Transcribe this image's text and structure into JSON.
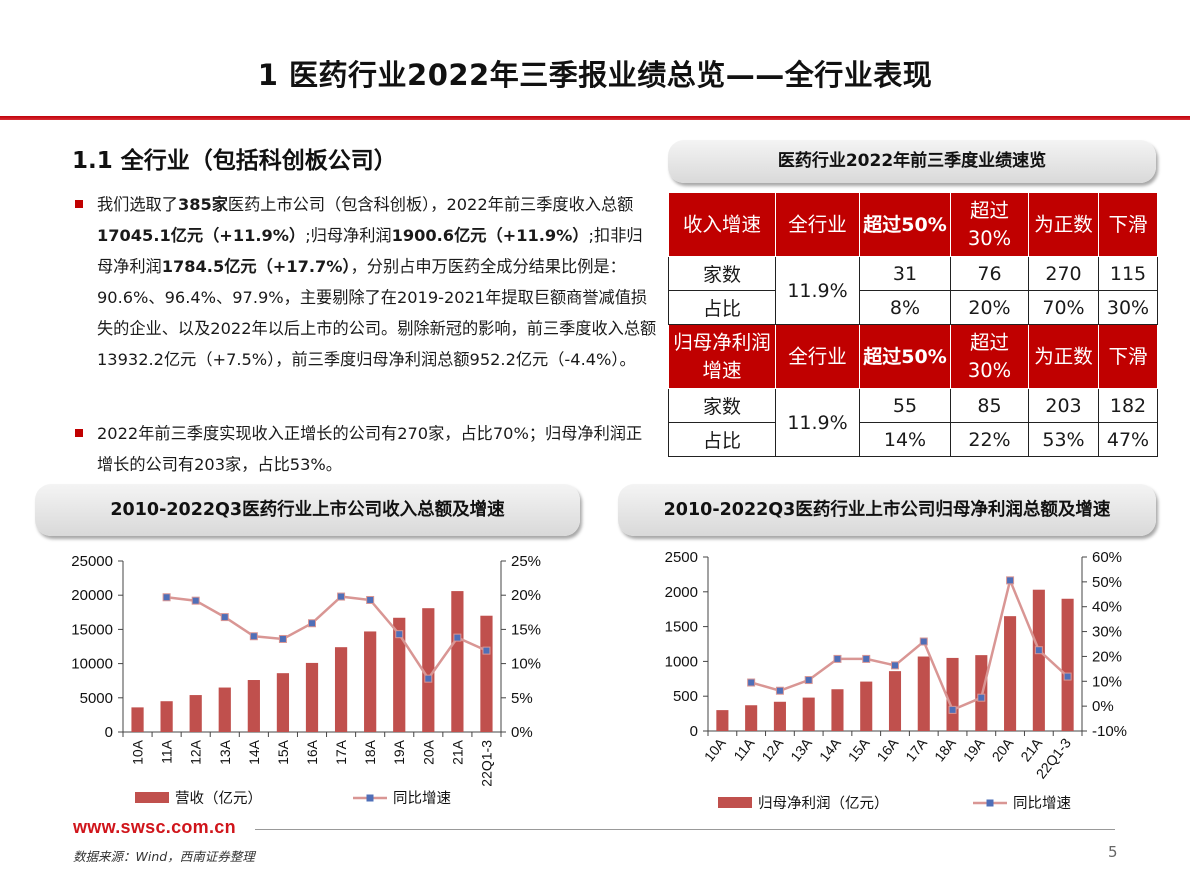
{
  "page": {
    "title": "1 医药行业2022年三季报业绩总览——全行业表现",
    "section_heading": "1.1 全行业（包括科创板公司）",
    "bullet1": [
      {
        "t": "我们选取了",
        "b": false
      },
      {
        "t": "385家",
        "b": true
      },
      {
        "t": "医药上市公司（包含科创板），2022年前三季度收入总额",
        "b": false
      },
      {
        "t": "17045.1亿元（+11.9%）",
        "b": true
      },
      {
        "t": ";归母净利润",
        "b": false
      },
      {
        "t": "1900.6亿元（+11.9%）",
        "b": true
      },
      {
        "t": ";扣非归母净利润",
        "b": false
      },
      {
        "t": "1784.5亿元（+17.7%）",
        "b": true
      },
      {
        "t": "，分别占申万医药全成分结果比例是：90.6%、96.4%、97.9%，主要剔除了在2019-2021年提取巨额商誉减值损失的企业、以及2022年以后上市的公司。剔除新冠的影响，前三季度收入总额13932.2亿元（+7.5%），前三季度归母净利润总额952.2亿元（-4.4%）。",
        "b": false
      }
    ],
    "bullet2": "2022年前三季度实现收入正增长的公司有270家，占比70%；归母净利润正增长的公司有203家，占比53%。",
    "footer_url": "www.swsc.com.cn",
    "footer_source": "数据来源：Wind，西南证券整理",
    "page_number": "5"
  },
  "table": {
    "title": "医药行业2022年前三季度业绩速览",
    "blocks": [
      {
        "header": [
          "收入增速",
          "全行业",
          "超过50%",
          "超过30%",
          "为正数",
          "下滑"
        ],
        "overall": "11.9%",
        "rows": [
          {
            "label": "家数",
            "values": [
              "31",
              "76",
              "270",
              "115"
            ]
          },
          {
            "label": "占比",
            "values": [
              "8%",
              "20%",
              "70%",
              "30%"
            ]
          }
        ]
      },
      {
        "header": [
          "归母净利润增速",
          "全行业",
          "超过50%",
          "超过30%",
          "为正数",
          "下滑"
        ],
        "overall": "11.9%",
        "rows": [
          {
            "label": "家数",
            "values": [
              "55",
              "85",
              "203",
              "182"
            ]
          },
          {
            "label": "占比",
            "values": [
              "14%",
              "22%",
              "53%",
              "47%"
            ]
          }
        ]
      }
    ]
  },
  "chart_data": [
    {
      "type": "bar+line",
      "title": "2010-2022Q3医药行业上市公司收入总额及增速",
      "categories": [
        "10A",
        "11A",
        "12A",
        "13A",
        "14A",
        "15A",
        "16A",
        "17A",
        "18A",
        "19A",
        "20A",
        "21A",
        "22Q1-3"
      ],
      "series": [
        {
          "name": "营收（亿元）",
          "type": "bar",
          "axis": "left",
          "color": "#c0504d",
          "values": [
            3600,
            4500,
            5400,
            6500,
            7600,
            8600,
            10100,
            12400,
            14700,
            16700,
            18100,
            20600,
            17000
          ]
        },
        {
          "name": "同比增速",
          "type": "line",
          "axis": "right",
          "color": "#d99694",
          "marker_color": "#4f6fb8",
          "values": [
            null,
            19.7,
            19.2,
            16.8,
            14.0,
            13.6,
            15.9,
            19.8,
            19.3,
            14.3,
            7.8,
            13.8,
            11.9
          ]
        }
      ],
      "y_left": {
        "min": 0,
        "max": 25000,
        "ticks": [
          0,
          5000,
          10000,
          15000,
          20000,
          25000
        ]
      },
      "y_right": {
        "min": 0,
        "max": 25,
        "ticks": [
          "0%",
          "5%",
          "10%",
          "15%",
          "20%",
          "25%"
        ]
      },
      "legend": "bottom"
    },
    {
      "type": "bar+line",
      "title": "2010-2022Q3医药行业上市公司归母净利润总额及增速",
      "categories": [
        "10A",
        "11A",
        "12A",
        "13A",
        "14A",
        "15A",
        "16A",
        "17A",
        "18A",
        "19A",
        "20A",
        "21A",
        "22Q1-3"
      ],
      "series": [
        {
          "name": "归母净利润（亿元）",
          "type": "bar",
          "axis": "left",
          "color": "#c0504d",
          "values": [
            300,
            370,
            420,
            480,
            600,
            710,
            860,
            1070,
            1050,
            1090,
            1650,
            2030,
            1900
          ]
        },
        {
          "name": "同比增速",
          "type": "line",
          "axis": "right",
          "color": "#d99694",
          "marker_color": "#4f6fb8",
          "values": [
            null,
            9.5,
            6.2,
            10.5,
            19.0,
            19.0,
            16.4,
            26.0,
            -1.5,
            3.4,
            50.6,
            22.5,
            11.9
          ]
        }
      ],
      "y_left": {
        "min": 0,
        "max": 2500,
        "ticks": [
          0,
          500,
          1000,
          1500,
          2000,
          2500
        ]
      },
      "y_right": {
        "min": -10,
        "max": 60,
        "ticks": [
          "-10%",
          "0%",
          "10%",
          "20%",
          "30%",
          "40%",
          "50%",
          "60%"
        ]
      },
      "legend": "bottom"
    }
  ]
}
